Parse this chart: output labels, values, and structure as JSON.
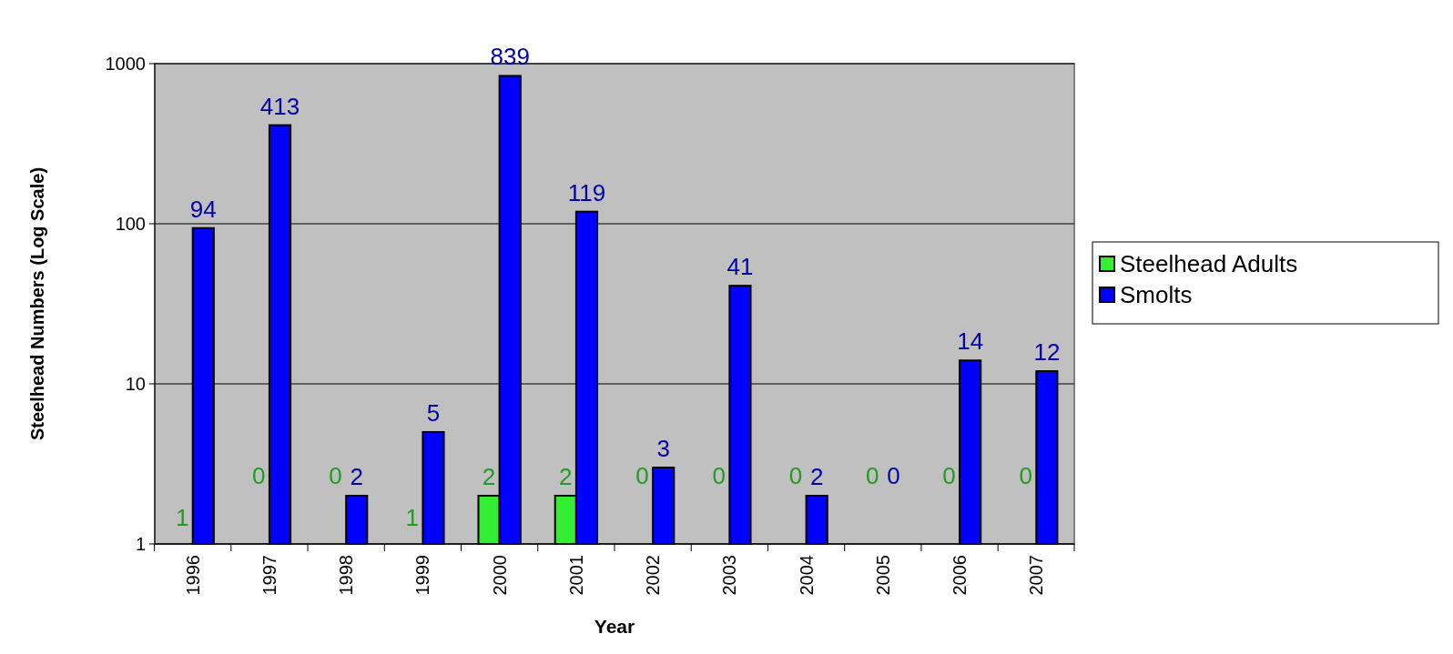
{
  "chart_data": {
    "type": "bar",
    "xlabel": "Year",
    "ylabel": "Steelhead Numbers (Log Scale)",
    "categories": [
      "1996",
      "1997",
      "1998",
      "1999",
      "2000",
      "2001",
      "2002",
      "2003",
      "2004",
      "2005",
      "2006",
      "2007"
    ],
    "series": [
      {
        "name": "Steelhead Adults",
        "color": "#33ee33",
        "values": [
          1,
          null,
          null,
          1,
          2,
          2,
          null,
          null,
          null,
          null,
          null,
          null
        ],
        "value_labels": [
          "1",
          "0",
          "0",
          "1",
          "2",
          "2",
          "0",
          "0",
          "0",
          "0",
          "0",
          "0"
        ]
      },
      {
        "name": "Smolts",
        "color": "#0000ff",
        "values": [
          94,
          413,
          2,
          5,
          839,
          119,
          3,
          41,
          2,
          null,
          14,
          12
        ],
        "value_labels": [
          "94",
          "413",
          "2",
          "5",
          "839",
          "119",
          "3",
          "41",
          "2",
          "0",
          "14",
          "12"
        ]
      }
    ],
    "log": true,
    "ylim": [
      1,
      1000
    ],
    "yticks": [
      1,
      10,
      100,
      1000
    ],
    "grid": "y",
    "legend": "right"
  }
}
